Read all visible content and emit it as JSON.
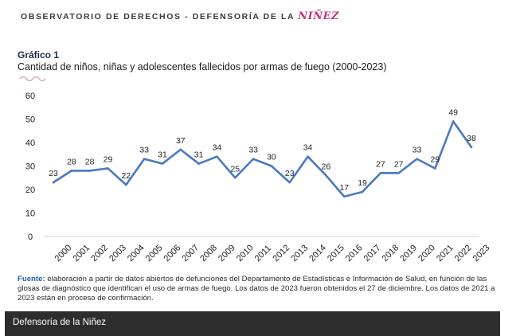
{
  "header": {
    "org_text": "OBSERVATORIO DE DERECHOS - DEFENSORÍA DE LA ",
    "org_accent": "NIÑEZ"
  },
  "figure": {
    "label": "Gráfico 1",
    "title": "Cantidad de niños, niñas y adolescentes fallecidos por armas de fuego (2000-2023)"
  },
  "chart_data": {
    "type": "line",
    "title": "Cantidad de niños, niñas y adolescentes fallecidos por armas de fuego (2000-2023)",
    "xlabel": "",
    "ylabel": "",
    "categories": [
      "2000",
      "2001",
      "2002",
      "2003",
      "2004",
      "2005",
      "2006",
      "2007",
      "2008",
      "2009",
      "2010",
      "2011",
      "2012",
      "2013",
      "2014",
      "2015",
      "2016",
      "2017",
      "2018",
      "2019",
      "2020",
      "2021",
      "2022",
      "2023"
    ],
    "values": [
      23,
      28,
      28,
      29,
      22,
      33,
      31,
      37,
      31,
      34,
      25,
      33,
      30,
      23,
      34,
      26,
      17,
      19,
      27,
      27,
      33,
      29,
      49,
      38
    ],
    "ylim": [
      0,
      60
    ],
    "yticks": [
      0,
      10,
      20,
      30,
      40,
      50,
      60
    ],
    "line_color": "#4a79c2",
    "grid": false,
    "legend": "none"
  },
  "source": {
    "label": "Fuente:",
    "text": "elaboración a partir de datos abiertos de defunciones del Departamento de Estadísticas e Información de Salud, en función de las glosas de diagnóstico que identifican el uso de armas de fuego. Los datos de 2023 fueron obtenidos el 27 de diciembre. Los datos de 2021 a 2023 están en proceso de confirmación."
  },
  "footer": {
    "text": "Defensoría de la Niñez"
  }
}
